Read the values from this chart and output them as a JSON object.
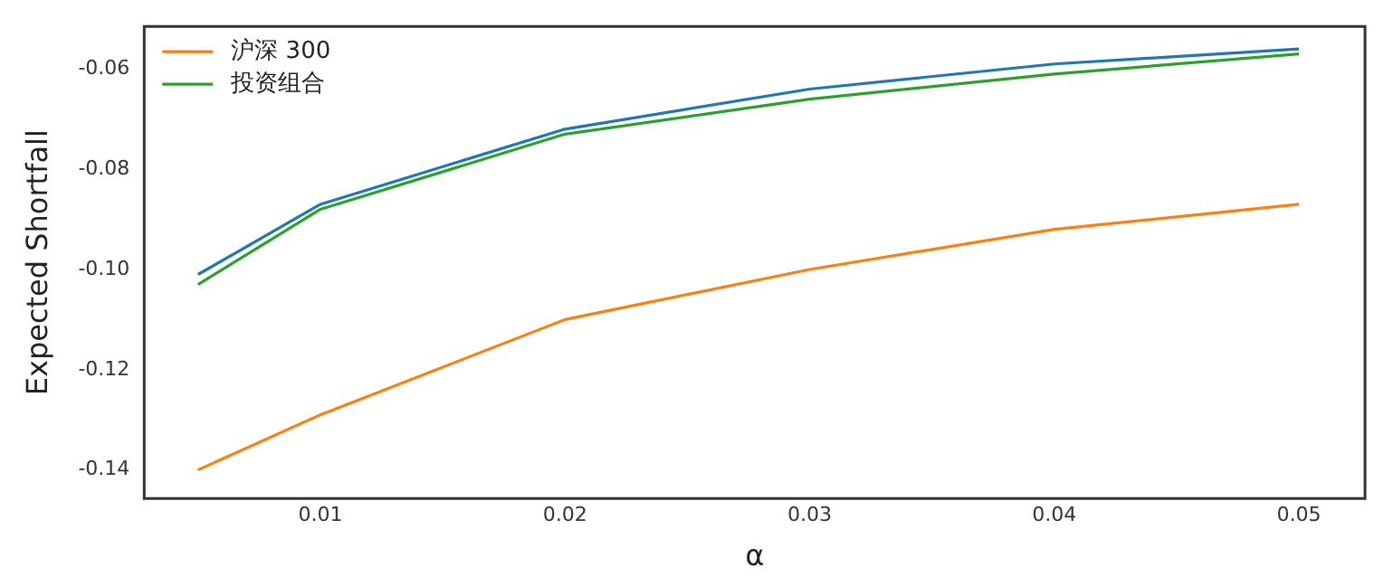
{
  "chart_data": {
    "type": "line",
    "xlabel": "α",
    "ylabel": "Expected Shortfall",
    "x": [
      0.005,
      0.01,
      0.02,
      0.03,
      0.04,
      0.05
    ],
    "series": [
      {
        "color": "#1f77b4",
        "values": [
          -0.101,
          -0.087,
          -0.072,
          -0.064,
          -0.059,
          -0.056
        ]
      },
      {
        "name": "沪深 300",
        "color": "#ff7f0e",
        "values": [
          -0.14,
          -0.129,
          -0.11,
          -0.1,
          -0.092,
          -0.087
        ]
      },
      {
        "name": "投资组合",
        "color": "#2ca02c",
        "values": [
          -0.103,
          -0.088,
          -0.073,
          -0.066,
          -0.061,
          -0.057
        ]
      }
    ],
    "xlim": [
      0.0028,
      0.0527
    ],
    "xticks": [
      0.01,
      0.02,
      0.03,
      0.04,
      0.05
    ],
    "ylim": [
      -0.1457,
      -0.0515
    ],
    "yticks": [
      {
        "value": -0.06,
        "label": "-0.06"
      },
      {
        "value": -0.08,
        "label": "-0.08"
      },
      {
        "value": -0.1,
        "label": "-0.10"
      },
      {
        "value": -0.12,
        "label": "-0.12"
      },
      {
        "value": -0.14,
        "label": "-0.14"
      }
    ],
    "grid": false,
    "legend": "top left",
    "marker": "none",
    "line_style": "solid"
  }
}
